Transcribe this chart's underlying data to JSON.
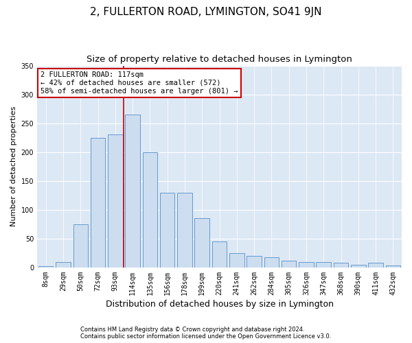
{
  "title": "2, FULLERTON ROAD, LYMINGTON, SO41 9JN",
  "subtitle": "Size of property relative to detached houses in Lymington",
  "xlabel": "Distribution of detached houses by size in Lymington",
  "ylabel": "Number of detached properties",
  "categories": [
    "8sqm",
    "29sqm",
    "50sqm",
    "72sqm",
    "93sqm",
    "114sqm",
    "135sqm",
    "156sqm",
    "178sqm",
    "199sqm",
    "220sqm",
    "241sqm",
    "262sqm",
    "284sqm",
    "305sqm",
    "326sqm",
    "347sqm",
    "368sqm",
    "390sqm",
    "411sqm",
    "432sqm"
  ],
  "values": [
    2,
    10,
    75,
    225,
    230,
    265,
    200,
    130,
    130,
    85,
    45,
    25,
    20,
    18,
    12,
    10,
    10,
    8,
    5,
    8,
    4
  ],
  "bar_color": "#ccddf0",
  "bar_edge_color": "#6699cc",
  "vline_color": "#cc0000",
  "annotation_text": "2 FULLERTON ROAD: 117sqm\n← 42% of detached houses are smaller (572)\n58% of semi-detached houses are larger (801) →",
  "annotation_box_color": "#ffffff",
  "annotation_box_edge": "#cc0000",
  "ylim": [
    0,
    350
  ],
  "yticks": [
    0,
    50,
    100,
    150,
    200,
    250,
    300,
    350
  ],
  "plot_bg_color": "#dde8f5",
  "footer_line1": "Contains HM Land Registry data © Crown copyright and database right 2024.",
  "footer_line2": "Contains public sector information licensed under the Open Government Licence v3.0.",
  "title_fontsize": 11,
  "subtitle_fontsize": 9.5,
  "xlabel_fontsize": 9,
  "ylabel_fontsize": 8,
  "tick_fontsize": 7
}
